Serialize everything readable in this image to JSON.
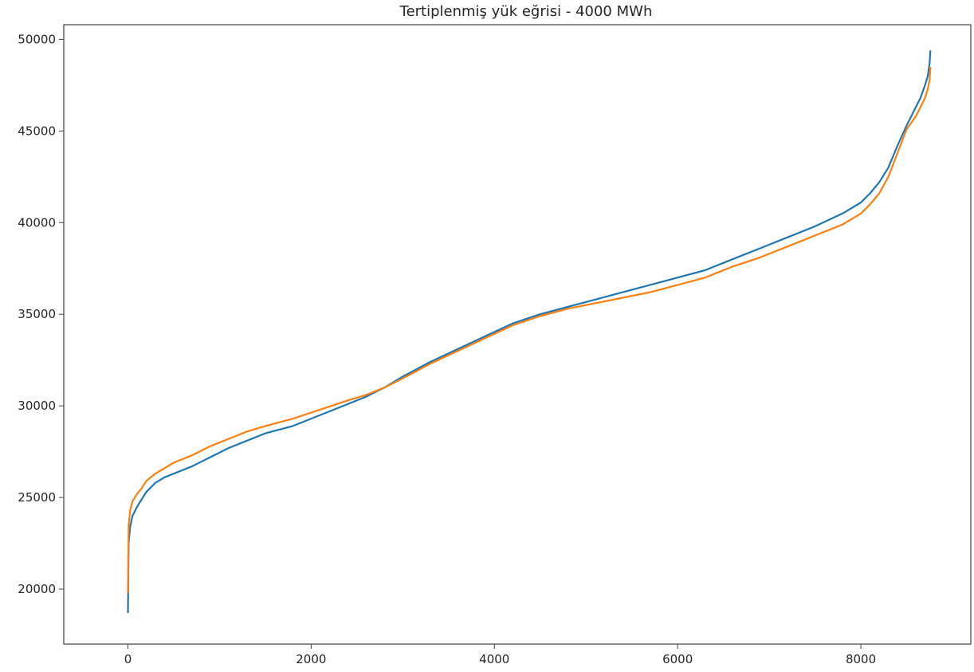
{
  "chart_data": {
    "type": "line",
    "title": "Tertiplenmiş yük eğrisi - 4000 MWh",
    "xlabel": "",
    "ylabel": "",
    "xlim": [
      -700,
      9200
    ],
    "ylim": [
      17000,
      50800
    ],
    "xticks": [
      0,
      2000,
      4000,
      6000,
      8000
    ],
    "xtick_labels": [
      "0",
      "2000",
      "4000",
      "6000",
      "8000"
    ],
    "yticks": [
      20000,
      25000,
      30000,
      35000,
      40000,
      45000,
      50000
    ],
    "ytick_labels": [
      "20000",
      "25000",
      "30000",
      "35000",
      "40000",
      "45000",
      "50000"
    ],
    "grid": false,
    "series": [
      {
        "color": "#1f77b4",
        "x": [
          0,
          8,
          25,
          50,
          100,
          150,
          200,
          300,
          400,
          500,
          700,
          900,
          1100,
          1300,
          1500,
          1800,
          2100,
          2400,
          2600,
          2800,
          3000,
          3300,
          3600,
          3900,
          4200,
          4500,
          4800,
          5100,
          5400,
          5700,
          6000,
          6300,
          6600,
          6900,
          7200,
          7500,
          7800,
          8000,
          8100,
          8200,
          8300,
          8400,
          8500,
          8600,
          8650,
          8700,
          8730,
          8750,
          8759
        ],
        "y": [
          18700,
          22500,
          23400,
          24000,
          24500,
          24900,
          25300,
          25800,
          26100,
          26300,
          26700,
          27200,
          27700,
          28100,
          28500,
          28900,
          29500,
          30100,
          30500,
          31000,
          31600,
          32400,
          33100,
          33800,
          34500,
          35000,
          35400,
          35800,
          36200,
          36600,
          37000,
          37400,
          38000,
          38600,
          39200,
          39800,
          40500,
          41100,
          41600,
          42200,
          43000,
          44200,
          45300,
          46300,
          46800,
          47500,
          48000,
          48700,
          49400
        ]
      },
      {
        "color": "#ff7f0e",
        "x": [
          0,
          8,
          25,
          50,
          100,
          150,
          200,
          300,
          400,
          500,
          700,
          900,
          1100,
          1300,
          1500,
          1800,
          2100,
          2400,
          2600,
          2800,
          3000,
          3300,
          3600,
          3900,
          4200,
          4500,
          4800,
          5100,
          5400,
          5700,
          6000,
          6300,
          6600,
          6900,
          7200,
          7500,
          7800,
          8000,
          8100,
          8200,
          8300,
          8400,
          8500,
          8600,
          8650,
          8700,
          8730,
          8750,
          8759
        ],
        "y": [
          19800,
          23500,
          24300,
          24800,
          25200,
          25500,
          25900,
          26300,
          26600,
          26900,
          27300,
          27800,
          28200,
          28600,
          28900,
          29300,
          29800,
          30300,
          30600,
          31000,
          31500,
          32300,
          33000,
          33700,
          34400,
          34900,
          35300,
          35600,
          35900,
          36200,
          36600,
          37000,
          37600,
          38100,
          38700,
          39300,
          39900,
          40500,
          41000,
          41600,
          42500,
          43800,
          45100,
          45800,
          46300,
          46800,
          47300,
          47800,
          48500
        ]
      }
    ]
  }
}
